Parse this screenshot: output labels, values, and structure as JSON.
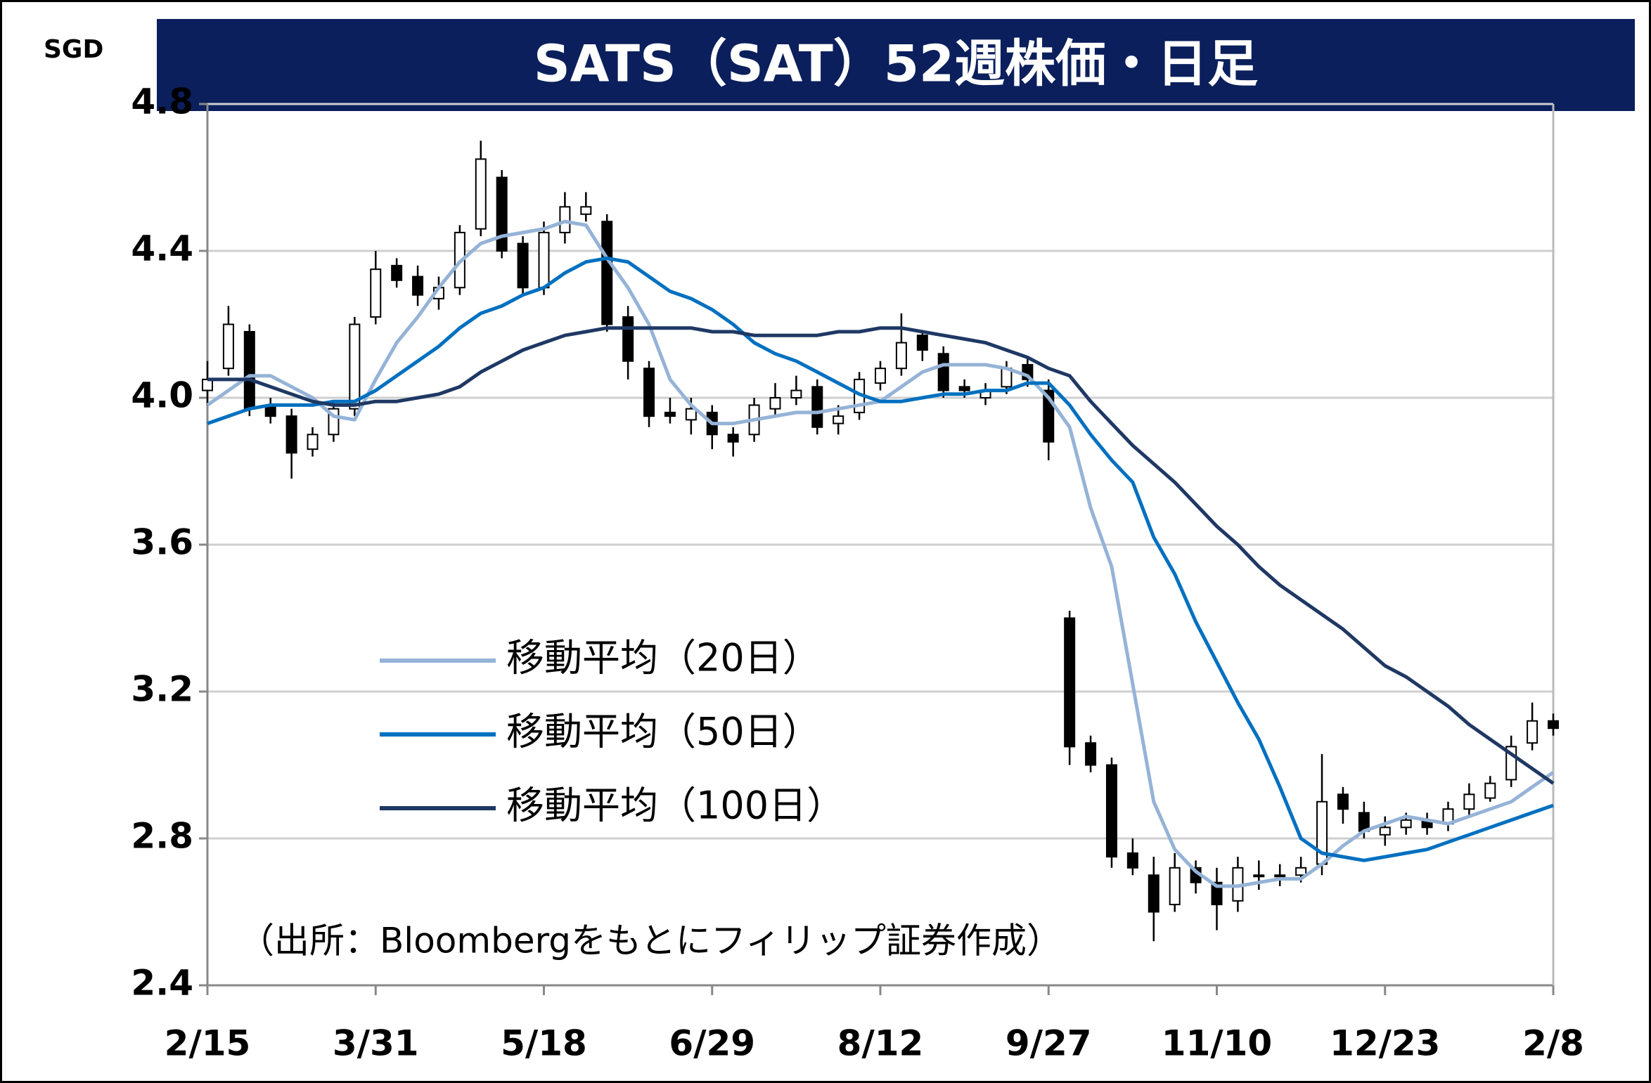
{
  "chart_data": {
    "type": "candlestick",
    "title": "SATS（SAT）52週株価・日足",
    "y_unit": "SGD",
    "source": "（出所：Bloombergをもとにフィリップ証券作成）",
    "categories": [
      "2/15",
      null,
      null,
      null,
      null,
      null,
      null,
      null,
      "3/31",
      null,
      null,
      null,
      null,
      null,
      null,
      null,
      "5/18",
      null,
      null,
      null,
      null,
      null,
      null,
      null,
      "6/29",
      null,
      null,
      null,
      null,
      null,
      null,
      null,
      "8/12",
      null,
      null,
      null,
      null,
      null,
      null,
      null,
      "9/27",
      null,
      null,
      null,
      null,
      null,
      null,
      null,
      "11/10",
      null,
      null,
      null,
      null,
      null,
      null,
      null,
      "12/23",
      null,
      null,
      null,
      null,
      null,
      null,
      null,
      "2/8"
    ],
    "open": [
      4.02,
      4.08,
      4.18,
      3.98,
      3.95,
      3.86,
      3.9,
      3.97,
      4.22,
      4.36,
      4.33,
      4.27,
      4.3,
      4.46,
      4.6,
      4.42,
      4.3,
      4.45,
      4.5,
      4.48,
      4.22,
      4.08,
      3.96,
      3.94,
      3.96,
      3.9,
      3.9,
      3.97,
      4.0,
      4.03,
      3.93,
      3.96,
      4.04,
      4.08,
      4.17,
      4.12,
      4.03,
      4.0,
      4.03,
      4.09,
      4.02,
      3.4,
      3.06,
      3.0,
      2.76,
      2.7,
      2.62,
      2.72,
      2.68,
      2.63,
      2.7,
      2.7,
      2.7,
      2.73,
      2.92,
      2.87,
      2.81,
      2.83,
      2.85,
      2.84,
      2.88,
      2.91,
      2.96,
      3.06,
      3.12
    ],
    "high": [
      4.1,
      4.25,
      4.2,
      4.0,
      3.97,
      3.92,
      3.99,
      4.22,
      4.4,
      4.38,
      4.36,
      4.33,
      4.47,
      4.7,
      4.62,
      4.44,
      4.48,
      4.56,
      4.56,
      4.5,
      4.25,
      4.1,
      4.0,
      4.0,
      3.98,
      3.92,
      4.0,
      4.04,
      4.06,
      4.05,
      3.98,
      4.07,
      4.1,
      4.23,
      4.18,
      4.14,
      4.05,
      4.04,
      4.1,
      4.11,
      4.05,
      3.42,
      3.08,
      3.02,
      2.8,
      2.75,
      2.76,
      2.74,
      2.72,
      2.75,
      2.74,
      2.73,
      2.75,
      3.03,
      2.94,
      2.9,
      2.86,
      2.87,
      2.87,
      2.9,
      2.95,
      2.97,
      3.08,
      3.17,
      3.14
    ],
    "low": [
      3.98,
      4.06,
      3.95,
      3.93,
      3.78,
      3.84,
      3.88,
      3.95,
      4.2,
      4.3,
      4.25,
      4.24,
      4.28,
      4.44,
      4.38,
      4.28,
      4.28,
      4.42,
      4.48,
      4.18,
      4.05,
      3.92,
      3.93,
      3.9,
      3.86,
      3.84,
      3.88,
      3.95,
      3.98,
      3.9,
      3.9,
      3.94,
      4.02,
      4.06,
      4.1,
      4.0,
      4.0,
      3.98,
      4.01,
      4.03,
      3.83,
      3.0,
      2.98,
      2.72,
      2.7,
      2.52,
      2.6,
      2.65,
      2.55,
      2.6,
      2.66,
      2.67,
      2.68,
      2.7,
      2.84,
      2.8,
      2.78,
      2.81,
      2.81,
      2.82,
      2.86,
      2.9,
      2.94,
      3.04,
      3.08
    ],
    "close": [
      4.05,
      4.2,
      3.97,
      3.95,
      3.85,
      3.9,
      3.97,
      4.2,
      4.35,
      4.32,
      4.28,
      4.3,
      4.45,
      4.65,
      4.4,
      4.3,
      4.45,
      4.52,
      4.52,
      4.2,
      4.1,
      3.95,
      3.95,
      3.97,
      3.9,
      3.88,
      3.98,
      4.0,
      4.02,
      3.92,
      3.95,
      4.05,
      4.08,
      4.15,
      4.13,
      4.02,
      4.02,
      4.02,
      4.08,
      4.05,
      3.88,
      3.05,
      3.0,
      2.75,
      2.72,
      2.6,
      2.72,
      2.68,
      2.62,
      2.72,
      2.7,
      2.7,
      2.72,
      2.9,
      2.88,
      2.82,
      2.83,
      2.85,
      2.83,
      2.88,
      2.92,
      2.95,
      3.05,
      3.12,
      3.1
    ],
    "up_color": "#ffffff",
    "down_color": "#000000",
    "series": [
      {
        "name": "移動平均（20日）",
        "color": "#95b3d7",
        "values": [
          3.98,
          4.02,
          4.06,
          4.06,
          4.03,
          4.0,
          3.95,
          3.94,
          4.05,
          4.15,
          4.22,
          4.3,
          4.37,
          4.42,
          4.44,
          4.45,
          4.46,
          4.48,
          4.47,
          4.38,
          4.3,
          4.2,
          4.05,
          3.98,
          3.93,
          3.93,
          3.94,
          3.95,
          3.96,
          3.96,
          3.97,
          3.98,
          3.99,
          4.03,
          4.07,
          4.09,
          4.09,
          4.09,
          4.08,
          4.06,
          4.0,
          3.92,
          3.7,
          3.54,
          3.22,
          2.9,
          2.77,
          2.71,
          2.67,
          2.67,
          2.68,
          2.69,
          2.69,
          2.73,
          2.78,
          2.82,
          2.84,
          2.86,
          2.85,
          2.84,
          2.86,
          2.88,
          2.9,
          2.94,
          2.98
        ]
      },
      {
        "name": "移動平均（50日）",
        "color": "#0070c0",
        "values": [
          3.93,
          3.95,
          3.97,
          3.98,
          3.98,
          3.98,
          3.99,
          3.99,
          4.02,
          4.06,
          4.1,
          4.14,
          4.19,
          4.23,
          4.25,
          4.28,
          4.3,
          4.34,
          4.37,
          4.38,
          4.37,
          4.33,
          4.29,
          4.27,
          4.24,
          4.2,
          4.15,
          4.12,
          4.1,
          4.07,
          4.04,
          4.01,
          3.99,
          3.99,
          4.0,
          4.01,
          4.01,
          4.02,
          4.02,
          4.04,
          4.04,
          3.98,
          3.9,
          3.83,
          3.77,
          3.62,
          3.52,
          3.39,
          3.28,
          3.17,
          3.07,
          2.94,
          2.8,
          2.76,
          2.75,
          2.74,
          2.75,
          2.76,
          2.77,
          2.79,
          2.81,
          2.83,
          2.85,
          2.87,
          2.89
        ]
      },
      {
        "name": "移動平均（100日）",
        "color": "#1f3864",
        "values": [
          4.05,
          4.05,
          4.05,
          4.03,
          4.01,
          3.99,
          3.98,
          3.98,
          3.99,
          3.99,
          4.0,
          4.01,
          4.03,
          4.07,
          4.1,
          4.13,
          4.15,
          4.17,
          4.18,
          4.19,
          4.19,
          4.19,
          4.19,
          4.19,
          4.18,
          4.18,
          4.17,
          4.17,
          4.17,
          4.17,
          4.18,
          4.18,
          4.19,
          4.19,
          4.18,
          4.17,
          4.16,
          4.15,
          4.13,
          4.11,
          4.08,
          4.06,
          3.99,
          3.93,
          3.87,
          3.82,
          3.77,
          3.71,
          3.65,
          3.6,
          3.54,
          3.49,
          3.45,
          3.41,
          3.37,
          3.32,
          3.27,
          3.24,
          3.2,
          3.16,
          3.11,
          3.07,
          3.03,
          2.99,
          2.95
        ]
      }
    ],
    "ylim": [
      2.4,
      4.8
    ],
    "yticks": [
      2.4,
      2.8,
      3.2,
      3.6,
      {
        "value": 4,
        "label": "4.0"
      },
      4.4,
      4.8
    ],
    "grid": true,
    "legend": "left"
  }
}
